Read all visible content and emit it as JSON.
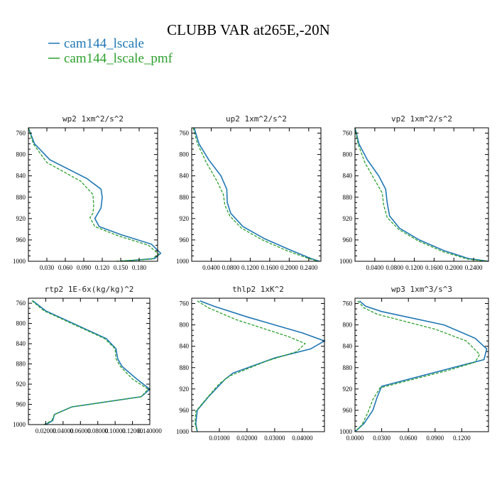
{
  "title": "CLUBB VAR at265E,-20N",
  "legend": [
    {
      "name": "cam144_lscale",
      "color": "#1f77b4"
    },
    {
      "name": "cam144_lscale_pmf",
      "color": "#2ca02c"
    }
  ],
  "chart_data": [
    {
      "type": "line",
      "title": "wp2  1xm^2/s^2",
      "xlim": [
        0.0,
        0.21
      ],
      "ylim": [
        750,
        1000
      ],
      "y_inverted": true,
      "xticks": [
        0.03,
        0.06,
        0.09,
        0.12,
        0.15,
        0.18
      ],
      "xtick_labels": [
        "0.030",
        "0.060",
        "0.090",
        "0.120",
        "0.150",
        "0.180"
      ],
      "yticks": [
        760,
        800,
        840,
        880,
        920,
        960,
        1000
      ],
      "ytick_labels": [
        "760",
        "800",
        "840",
        "880",
        "920",
        "960",
        "1000"
      ],
      "series": [
        {
          "name": "cam144_lscale",
          "x": [
            0.0,
            0.01,
            0.035,
            0.095,
            0.118,
            0.12,
            0.118,
            0.108,
            0.115,
            0.15,
            0.2,
            0.215,
            0.205,
            0.15
          ],
          "y": [
            750,
            780,
            810,
            845,
            865,
            880,
            900,
            920,
            935,
            950,
            968,
            985,
            995,
            1000
          ]
        },
        {
          "name": "cam144_lscale_pmf",
          "x": [
            0.0,
            0.008,
            0.03,
            0.085,
            0.105,
            0.106,
            0.105,
            0.1,
            0.108,
            0.145,
            0.195,
            0.212,
            0.2,
            0.14
          ],
          "y": [
            750,
            780,
            815,
            850,
            875,
            895,
            910,
            918,
            935,
            952,
            970,
            987,
            996,
            1000
          ]
        }
      ]
    },
    {
      "type": "line",
      "title": "up2  1xm^2/s^2",
      "xlim": [
        0.0,
        0.265
      ],
      "ylim": [
        750,
        1000
      ],
      "y_inverted": true,
      "xticks": [
        0.04,
        0.08,
        0.12,
        0.16,
        0.2,
        0.24
      ],
      "xtick_labels": [
        "0.0400",
        "0.0800",
        "0.1200",
        "0.1600",
        "0.2000",
        "0.2400"
      ],
      "yticks": [
        760,
        800,
        840,
        880,
        920,
        960,
        1000
      ],
      "ytick_labels": [
        "760",
        "800",
        "840",
        "880",
        "920",
        "960",
        "1000"
      ],
      "series": [
        {
          "name": "cam144_lscale",
          "x": [
            0.005,
            0.015,
            0.035,
            0.06,
            0.072,
            0.073,
            0.08,
            0.105,
            0.15,
            0.2,
            0.245,
            0.262
          ],
          "y": [
            750,
            780,
            810,
            840,
            865,
            890,
            910,
            935,
            958,
            978,
            995,
            1000
          ]
        },
        {
          "name": "cam144_lscale_pmf",
          "x": [
            0.003,
            0.012,
            0.03,
            0.052,
            0.065,
            0.068,
            0.078,
            0.102,
            0.145,
            0.195,
            0.24,
            0.26
          ],
          "y": [
            750,
            780,
            815,
            850,
            875,
            895,
            915,
            938,
            960,
            980,
            995,
            1000
          ]
        }
      ]
    },
    {
      "type": "line",
      "title": "vp2  1xm^2/s^2",
      "xlim": [
        0.0,
        0.27
      ],
      "ylim": [
        750,
        1000
      ],
      "y_inverted": true,
      "xticks": [
        0.04,
        0.08,
        0.12,
        0.16,
        0.2,
        0.24
      ],
      "xtick_labels": [
        "0.0400",
        "0.0800",
        "0.1200",
        "0.1600",
        "0.2000",
        "0.2400"
      ],
      "yticks": [
        760,
        800,
        840,
        880,
        920,
        960,
        1000
      ],
      "ytick_labels": [
        "760",
        "800",
        "840",
        "880",
        "920",
        "960",
        "1000"
      ],
      "series": [
        {
          "name": "cam144_lscale",
          "x": [
            0.0,
            0.008,
            0.025,
            0.048,
            0.062,
            0.065,
            0.07,
            0.09,
            0.13,
            0.18,
            0.23,
            0.27
          ],
          "y": [
            750,
            780,
            810,
            840,
            865,
            890,
            915,
            938,
            960,
            980,
            995,
            1000
          ]
        },
        {
          "name": "cam144_lscale_pmf",
          "x": [
            0.0,
            0.006,
            0.02,
            0.04,
            0.055,
            0.058,
            0.065,
            0.088,
            0.128,
            0.178,
            0.228,
            0.27
          ],
          "y": [
            750,
            780,
            815,
            848,
            872,
            895,
            918,
            940,
            962,
            982,
            996,
            1000
          ]
        }
      ]
    },
    {
      "type": "line",
      "title": "rtp2  1E-6x(kg/kg)^2",
      "xlim": [
        0.0,
        0.14
      ],
      "ylim": [
        750,
        1000
      ],
      "y_inverted": true,
      "xticks": [
        0.02,
        0.04,
        0.06,
        0.08,
        0.1,
        0.12,
        0.14
      ],
      "xtick_labels": [
        "0.02000",
        "0.04000",
        "0.06000",
        "0.08000",
        "0.10000",
        "0.12000",
        "0.140000"
      ],
      "yticks": [
        760,
        800,
        840,
        880,
        920,
        960,
        1000
      ],
      "ytick_labels": [
        "760",
        "800",
        "840",
        "880",
        "920",
        "960",
        "1000"
      ],
      "series": [
        {
          "name": "cam144_lscale",
          "x": [
            0.005,
            0.02,
            0.09,
            0.101,
            0.103,
            0.108,
            0.125,
            0.14,
            0.13,
            0.05,
            0.03,
            0.028,
            0.02
          ],
          "y": [
            755,
            775,
            830,
            850,
            870,
            885,
            910,
            930,
            945,
            965,
            980,
            992,
            1000
          ]
        },
        {
          "name": "cam144_lscale_pmf",
          "x": [
            0.004,
            0.018,
            0.088,
            0.1,
            0.101,
            0.106,
            0.12,
            0.138,
            0.13,
            0.05,
            0.03,
            0.027,
            0.018
          ],
          "y": [
            755,
            775,
            830,
            850,
            870,
            885,
            910,
            930,
            945,
            965,
            980,
            992,
            1000
          ]
        }
      ]
    },
    {
      "type": "line",
      "title": "thlp2  1xK^2",
      "xlim": [
        0.0,
        0.048
      ],
      "ylim": [
        750,
        1000
      ],
      "y_inverted": true,
      "xticks": [
        0.01,
        0.02,
        0.03,
        0.04
      ],
      "xtick_labels": [
        "0.01000",
        "0.02000",
        "0.03000",
        "0.04000"
      ],
      "yticks": [
        760,
        800,
        840,
        880,
        920,
        960,
        1000
      ],
      "ytick_labels": [
        "760",
        "800",
        "840",
        "880",
        "920",
        "960",
        "1000"
      ],
      "series": [
        {
          "name": "cam144_lscale",
          "x": [
            0.003,
            0.008,
            0.02,
            0.04,
            0.048,
            0.043,
            0.03,
            0.015,
            0.012,
            0.006,
            0.002,
            0.0015,
            0.002
          ],
          "y": [
            755,
            765,
            785,
            815,
            830,
            845,
            862,
            890,
            902,
            935,
            960,
            985,
            1000
          ]
        },
        {
          "name": "cam144_lscale_pmf",
          "x": [
            0.002,
            0.006,
            0.016,
            0.035,
            0.041,
            0.038,
            0.027,
            0.014,
            0.01,
            0.005,
            0.0015,
            0.0012,
            0.002
          ],
          "y": [
            755,
            768,
            790,
            822,
            835,
            850,
            868,
            895,
            910,
            940,
            962,
            985,
            1000
          ]
        }
      ]
    },
    {
      "type": "line",
      "title": "wp3  1xm^3/s^3",
      "xlim": [
        0.0,
        0.15
      ],
      "ylim": [
        750,
        1000
      ],
      "y_inverted": true,
      "xticks": [
        0.0,
        0.03,
        0.06,
        0.09,
        0.12
      ],
      "xtick_labels": [
        "0.0000",
        "0.0300",
        "0.0600",
        "0.0900",
        "0.1200"
      ],
      "yticks": [
        760,
        800,
        840,
        880,
        920,
        960,
        1000
      ],
      "ytick_labels": [
        "760",
        "800",
        "840",
        "880",
        "920",
        "960",
        "1000"
      ],
      "series": [
        {
          "name": "cam144_lscale",
          "x": [
            0.005,
            0.012,
            0.03,
            0.1,
            0.135,
            0.148,
            0.145,
            0.11,
            0.03,
            0.025,
            0.02,
            0.01,
            0.0
          ],
          "y": [
            755,
            765,
            775,
            800,
            825,
            845,
            865,
            880,
            915,
            935,
            960,
            985,
            1000
          ]
        },
        {
          "name": "cam144_lscale_pmf",
          "x": [
            0.003,
            0.01,
            0.025,
            0.09,
            0.125,
            0.14,
            0.135,
            0.105,
            0.028,
            0.02,
            0.015,
            0.008,
            0.0
          ],
          "y": [
            755,
            768,
            780,
            808,
            830,
            855,
            870,
            885,
            918,
            940,
            962,
            987,
            1000
          ]
        }
      ]
    }
  ]
}
